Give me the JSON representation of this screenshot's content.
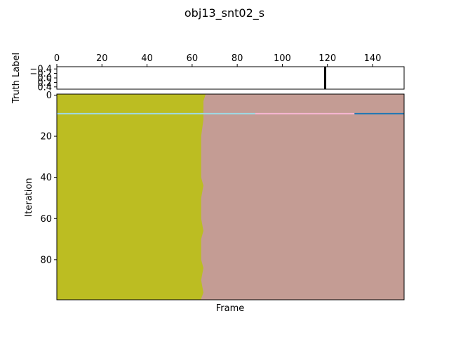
{
  "chart_data": [
    {
      "type": "heatmap",
      "panel": "truth-label",
      "ylabel": "Truth Label",
      "xlim": [
        0,
        154
      ],
      "ylim": [
        0.5,
        -0.5
      ],
      "x_ticks": [
        "0",
        "20",
        "40",
        "60",
        "80",
        "100",
        "120",
        "140"
      ],
      "x_tick_values": [
        0,
        20,
        40,
        60,
        80,
        100,
        120,
        140
      ],
      "y_ticks": [
        "−0.4",
        "−0.2",
        "0.0",
        "0.2",
        "0.4"
      ],
      "y_tick_values": [
        -0.4,
        -0.2,
        0.0,
        0.2,
        0.4
      ],
      "boundaries": [
        119
      ],
      "colors": {
        "background": "#ffffff",
        "boundary": "#000000"
      }
    },
    {
      "type": "heatmap",
      "panel": "iteration-map",
      "title": "obj13_snt02_s",
      "xlabel": "Frame",
      "ylabel": "Iteration",
      "xlim": [
        0,
        154
      ],
      "ylim": [
        99.5,
        -0.5
      ],
      "y_ticks": [
        "0",
        "20",
        "40",
        "60",
        "80"
      ],
      "y_tick_values": [
        0,
        20,
        40,
        60,
        80
      ],
      "regions": [
        {
          "name": "segment-1",
          "color": "#bcbd22",
          "x_start": 0
        },
        {
          "name": "segment-2",
          "color": "#c49c94",
          "x_end": 154
        }
      ],
      "boundary_by_iteration": [
        {
          "iteration": 0,
          "frame": 66
        },
        {
          "iteration": 3,
          "frame": 65
        },
        {
          "iteration": 8,
          "frame": 65
        },
        {
          "iteration": 12,
          "frame": 65
        },
        {
          "iteration": 20,
          "frame": 64
        },
        {
          "iteration": 30,
          "frame": 64
        },
        {
          "iteration": 40,
          "frame": 64
        },
        {
          "iteration": 44,
          "frame": 65
        },
        {
          "iteration": 50,
          "frame": 64
        },
        {
          "iteration": 60,
          "frame": 64
        },
        {
          "iteration": 66,
          "frame": 65
        },
        {
          "iteration": 70,
          "frame": 64
        },
        {
          "iteration": 80,
          "frame": 64
        },
        {
          "iteration": 84,
          "frame": 65
        },
        {
          "iteration": 90,
          "frame": 64
        },
        {
          "iteration": 96,
          "frame": 65
        },
        {
          "iteration": 99,
          "frame": 64
        }
      ],
      "highlight_row": {
        "iteration": 9,
        "segments": [
          {
            "x_start": 0,
            "x_end": 88,
            "color": "#9edae5"
          },
          {
            "x_start": 88,
            "x_end": 132,
            "color": "#f7b6d2"
          },
          {
            "x_start": 132,
            "x_end": 154,
            "color": "#1f77b4"
          }
        ]
      }
    }
  ]
}
